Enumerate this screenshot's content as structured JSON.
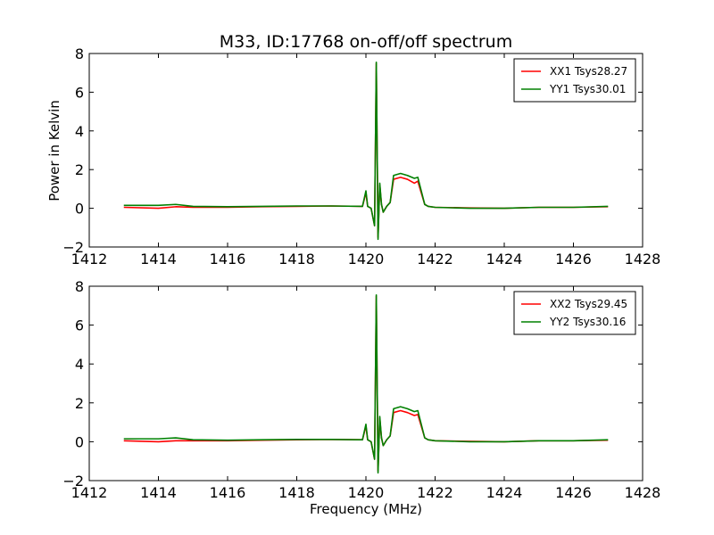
{
  "figure": {
    "title": "M33, ID:17768 on-off/off spectrum",
    "xlabel": "Frequency (MHz)",
    "ylabel": "Power in Kelvin"
  },
  "chart_data": [
    {
      "type": "line",
      "title": "M33, ID:17768 on-off/off spectrum",
      "xlabel": "",
      "ylabel": "Power in Kelvin",
      "xlim": [
        1412,
        1428
      ],
      "ylim": [
        -2,
        8
      ],
      "xticks": [
        1412,
        1414,
        1416,
        1418,
        1420,
        1422,
        1424,
        1426,
        1428
      ],
      "yticks": [
        -2,
        0,
        2,
        4,
        6,
        8
      ],
      "xtick_labels": [
        "1412",
        "1414",
        "1416",
        "1418",
        "1420",
        "1422",
        "1424",
        "1426",
        "1428"
      ],
      "ytick_labels": [
        "−2",
        "0",
        "2",
        "4",
        "6",
        "8"
      ],
      "grid": false,
      "legend_position": "top-right",
      "series": [
        {
          "name": "XX1 Tsys28.27",
          "color": "#ff0000",
          "x": [
            1413.0,
            1414.0,
            1414.5,
            1415.0,
            1416.0,
            1417.0,
            1418.0,
            1419.0,
            1419.9,
            1420.0,
            1420.05,
            1420.15,
            1420.25,
            1420.3,
            1420.35,
            1420.4,
            1420.45,
            1420.5,
            1420.6,
            1420.7,
            1420.8,
            1421.0,
            1421.2,
            1421.4,
            1421.5,
            1421.6,
            1421.7,
            1421.8,
            1422.0,
            1423.0,
            1424.0,
            1425.0,
            1426.0,
            1427.0
          ],
          "y": [
            0.05,
            0.0,
            0.08,
            0.05,
            0.05,
            0.08,
            0.1,
            0.12,
            0.1,
            0.8,
            0.1,
            0.0,
            -0.9,
            7.5,
            -1.5,
            1.2,
            0.2,
            -0.2,
            0.1,
            0.3,
            1.5,
            1.6,
            1.5,
            1.3,
            1.4,
            0.8,
            0.2,
            0.1,
            0.05,
            0.02,
            0.0,
            0.05,
            0.05,
            0.08
          ]
        },
        {
          "name": "YY1 Tsys30.01",
          "color": "#008000",
          "x": [
            1413.0,
            1414.0,
            1414.5,
            1415.0,
            1416.0,
            1417.0,
            1418.0,
            1419.0,
            1419.9,
            1420.0,
            1420.05,
            1420.15,
            1420.25,
            1420.3,
            1420.35,
            1420.4,
            1420.45,
            1420.5,
            1420.6,
            1420.7,
            1420.8,
            1421.0,
            1421.2,
            1421.4,
            1421.5,
            1421.6,
            1421.7,
            1421.8,
            1422.0,
            1423.0,
            1424.0,
            1425.0,
            1426.0,
            1427.0
          ],
          "y": [
            0.15,
            0.15,
            0.2,
            0.1,
            0.08,
            0.1,
            0.12,
            0.12,
            0.1,
            0.9,
            0.1,
            0.0,
            -0.9,
            7.55,
            -1.6,
            1.3,
            0.2,
            -0.2,
            0.1,
            0.3,
            1.7,
            1.8,
            1.7,
            1.55,
            1.6,
            0.9,
            0.2,
            0.1,
            0.05,
            0.0,
            0.0,
            0.05,
            0.05,
            0.1
          ]
        }
      ]
    },
    {
      "type": "line",
      "title": "",
      "xlabel": "Frequency (MHz)",
      "ylabel": "",
      "xlim": [
        1412,
        1428
      ],
      "ylim": [
        -2,
        8
      ],
      "xticks": [
        1412,
        1414,
        1416,
        1418,
        1420,
        1422,
        1424,
        1426,
        1428
      ],
      "yticks": [
        -2,
        0,
        2,
        4,
        6,
        8
      ],
      "xtick_labels": [
        "1412",
        "1414",
        "1416",
        "1418",
        "1420",
        "1422",
        "1424",
        "1426",
        "1428"
      ],
      "ytick_labels": [
        "−2",
        "0",
        "2",
        "4",
        "6",
        "8"
      ],
      "grid": false,
      "legend_position": "top-right",
      "series": [
        {
          "name": "XX2 Tsys29.45",
          "color": "#ff0000",
          "x": [
            1413.0,
            1414.0,
            1414.5,
            1415.0,
            1416.0,
            1417.0,
            1418.0,
            1419.0,
            1419.9,
            1420.0,
            1420.05,
            1420.15,
            1420.25,
            1420.3,
            1420.35,
            1420.4,
            1420.45,
            1420.5,
            1420.6,
            1420.7,
            1420.8,
            1421.0,
            1421.2,
            1421.4,
            1421.5,
            1421.6,
            1421.7,
            1421.8,
            1422.0,
            1423.0,
            1424.0,
            1425.0,
            1426.0,
            1427.0
          ],
          "y": [
            0.05,
            0.0,
            0.05,
            0.05,
            0.05,
            0.08,
            0.1,
            0.12,
            0.1,
            0.8,
            0.1,
            0.0,
            -0.9,
            7.5,
            -1.5,
            1.2,
            0.2,
            -0.2,
            0.1,
            0.3,
            1.5,
            1.6,
            1.5,
            1.35,
            1.4,
            0.8,
            0.2,
            0.1,
            0.05,
            0.02,
            0.0,
            0.05,
            0.05,
            0.08
          ]
        },
        {
          "name": "YY2 Tsys30.16",
          "color": "#008000",
          "x": [
            1413.0,
            1414.0,
            1414.5,
            1415.0,
            1416.0,
            1417.0,
            1418.0,
            1419.0,
            1419.9,
            1420.0,
            1420.05,
            1420.15,
            1420.25,
            1420.3,
            1420.35,
            1420.4,
            1420.45,
            1420.5,
            1420.6,
            1420.7,
            1420.8,
            1421.0,
            1421.2,
            1421.4,
            1421.5,
            1421.6,
            1421.7,
            1421.8,
            1422.0,
            1423.0,
            1424.0,
            1425.0,
            1426.0,
            1427.0
          ],
          "y": [
            0.15,
            0.15,
            0.2,
            0.1,
            0.08,
            0.1,
            0.12,
            0.12,
            0.1,
            0.9,
            0.1,
            0.0,
            -0.9,
            7.55,
            -1.6,
            1.3,
            0.2,
            -0.2,
            0.1,
            0.3,
            1.7,
            1.8,
            1.7,
            1.55,
            1.6,
            0.9,
            0.2,
            0.1,
            0.05,
            0.0,
            0.0,
            0.05,
            0.05,
            0.1
          ]
        }
      ]
    }
  ]
}
